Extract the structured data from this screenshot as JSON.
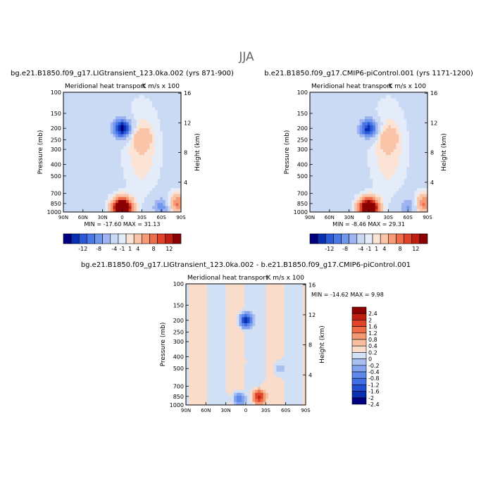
{
  "suptitle": "JJA",
  "chart_data": [
    {
      "type": "heatmap",
      "title": "bg.e21.B1850.f09_g17.LIGtransient_123.0ka.002 (yrs 871-900)",
      "subtitle": "Meridional heat transport",
      "units": "K m/s x 100",
      "xlabel": "",
      "ylabel": "Pressure (mb)",
      "y2label": "Height (km)",
      "x_ticks": [
        "90N",
        "60N",
        "30N",
        "0",
        "30S",
        "60S",
        "90S"
      ],
      "y_ticks": [
        100,
        150,
        200,
        250,
        300,
        400,
        500,
        700,
        850,
        1000
      ],
      "y2_ticks": [
        16,
        12,
        8,
        4
      ],
      "ylim": [
        1000,
        100
      ],
      "stats_text": "MIN = -17.60   MAX =  31.13",
      "min": -17.6,
      "max": 31.13,
      "colorbar_ticks": [
        "-12",
        "-8",
        "-4",
        "-1",
        "1",
        "4",
        "8",
        "12"
      ],
      "colorbar_orientation": "horizontal",
      "features": [
        {
          "lat": 0,
          "p": 200,
          "value": -14
        },
        {
          "lat": -30,
          "p": 240,
          "value": 3
        },
        {
          "lat": 0,
          "p": 930,
          "value": 25
        },
        {
          "lat": -60,
          "p": 900,
          "value": -6
        },
        {
          "lat": -85,
          "p": 850,
          "value": 8
        }
      ]
    },
    {
      "type": "heatmap",
      "title": "b.e21.B1850.f09_g17.CMIP6-piControl.001 (yrs 1171-1200)",
      "subtitle": "Meridional heat transport",
      "units": "K m/s x 100",
      "xlabel": "",
      "ylabel": "Pressure (mb)",
      "y2label": "Height (km)",
      "x_ticks": [
        "90N",
        "60N",
        "30N",
        "0",
        "30S",
        "60S",
        "90S"
      ],
      "y_ticks": [
        100,
        150,
        200,
        250,
        300,
        400,
        500,
        700,
        850,
        1000
      ],
      "y2_ticks": [
        16,
        12,
        8,
        4
      ],
      "ylim": [
        1000,
        100
      ],
      "stats_text": "MIN =  -8.46   MAX =  29.31",
      "min": -8.46,
      "max": 29.31,
      "colorbar_ticks": [
        "-12",
        "-8",
        "-4",
        "-1",
        "1",
        "4",
        "8",
        "12"
      ],
      "colorbar_orientation": "horizontal",
      "features": [
        {
          "lat": 0,
          "p": 200,
          "value": -12
        },
        {
          "lat": -30,
          "p": 240,
          "value": 3
        },
        {
          "lat": 0,
          "p": 930,
          "value": 24
        },
        {
          "lat": -60,
          "p": 900,
          "value": -5
        },
        {
          "lat": -85,
          "p": 850,
          "value": 8
        }
      ]
    },
    {
      "type": "heatmap",
      "title": "bg.e21.B1850.f09_g17.LIGtransient_123.0ka.002 - b.e21.B1850.f09_g17.CMIP6-piControl.001",
      "subtitle": "Meridional heat transport",
      "units": "K m/s x 100",
      "xlabel": "",
      "ylabel": "Pressure (mb)",
      "y2label": "Height (km)",
      "x_ticks": [
        "90N",
        "60N",
        "30N",
        "0",
        "30S",
        "60S",
        "90S"
      ],
      "y_ticks": [
        100,
        150,
        200,
        250,
        300,
        400,
        500,
        700,
        850,
        1000
      ],
      "y2_ticks": [
        16,
        12,
        8,
        4
      ],
      "ylim": [
        1000,
        100
      ],
      "stats_text": "MIN = -14.62   MAX =   9.98",
      "min": -14.62,
      "max": 9.98,
      "colorbar_ticks": [
        "2.4",
        "2",
        "1.6",
        "1.2",
        "0.8",
        "0.4",
        "0.2",
        "0",
        "-0.2",
        "-0.4",
        "-0.8",
        "-1.2",
        "-1.6",
        "-2",
        "-2.4"
      ],
      "colorbar_orientation": "vertical",
      "features": [
        {
          "lat": 0,
          "p": 200,
          "value": -2.4
        },
        {
          "lat": -20,
          "p": 860,
          "value": 2.0
        },
        {
          "lat": 10,
          "p": 900,
          "value": -1.2
        },
        {
          "lat": -50,
          "p": 500,
          "value": -0.4
        }
      ]
    }
  ],
  "colors": {
    "colorbar12": [
      "#000080",
      "#0a2fb0",
      "#2a5ad8",
      "#4a78e6",
      "#7196ee",
      "#9db4f0",
      "#cadaf4",
      "#e4ecfa",
      "#fbe3d6",
      "#f9c4a8",
      "#f59b78",
      "#ee6d48",
      "#e0432a",
      "#c01e10",
      "#8b0000"
    ],
    "colorbar_diff": [
      "#000080",
      "#0a2fb0",
      "#2050d0",
      "#3f6fe4",
      "#5e88ea",
      "#84a3ee",
      "#a8bff2",
      "#d2e0f6",
      "#f9dcca",
      "#f7bfa0",
      "#f39a74",
      "#ee6d48",
      "#e0432a",
      "#c01e10",
      "#8b0000"
    ]
  }
}
